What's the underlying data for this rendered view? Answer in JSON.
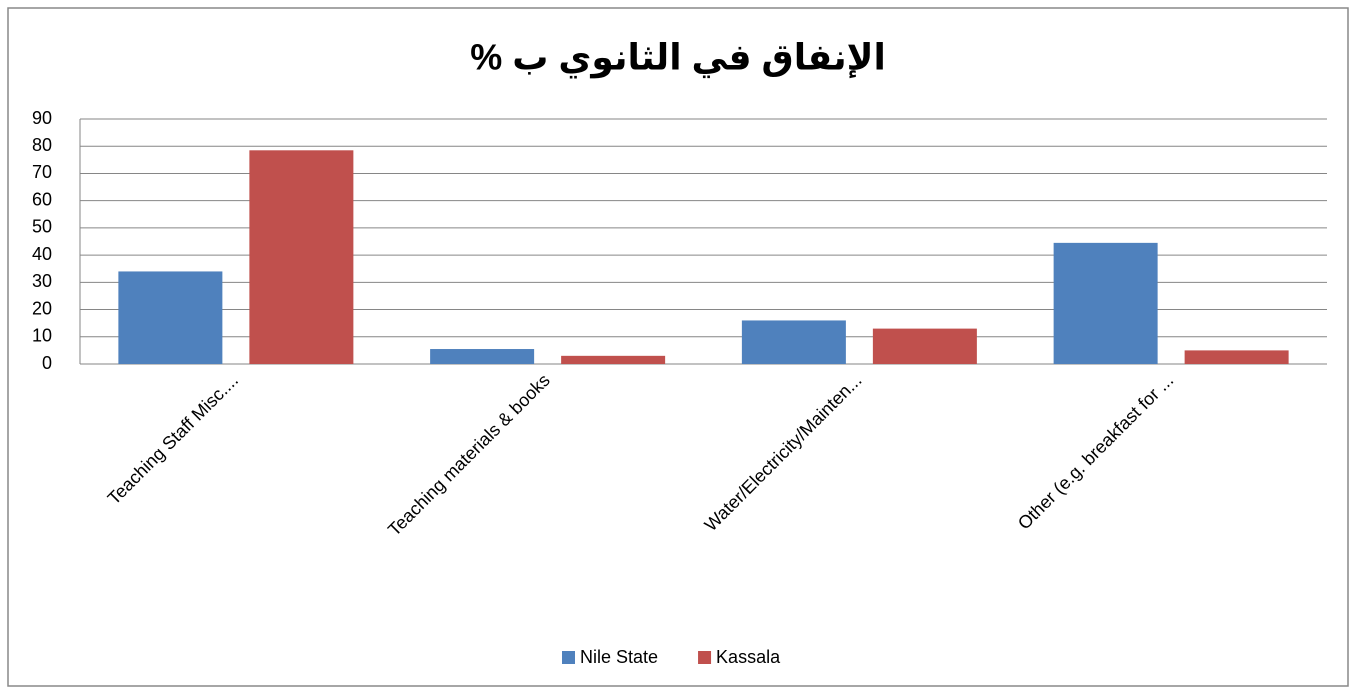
{
  "chart_data": {
    "type": "bar",
    "title": "الإنفاق في الثانوي ب %",
    "categories": [
      "Teaching Staff Misc....",
      "Teaching materials & books",
      "Water/Electricity/Mainten...",
      "Other (e.g. breakfast for ..."
    ],
    "series": [
      {
        "name": "Nile State",
        "color": "#4f81bd",
        "values": [
          34,
          5.5,
          16,
          44.5
        ]
      },
      {
        "name": "Kassala",
        "color": "#c0504d",
        "values": [
          78.5,
          3,
          13,
          5
        ]
      }
    ],
    "ylim": [
      0,
      90
    ],
    "yticks": [
      0,
      10,
      20,
      30,
      40,
      50,
      60,
      70,
      80,
      90
    ],
    "grid": true,
    "legend": "bottom"
  }
}
